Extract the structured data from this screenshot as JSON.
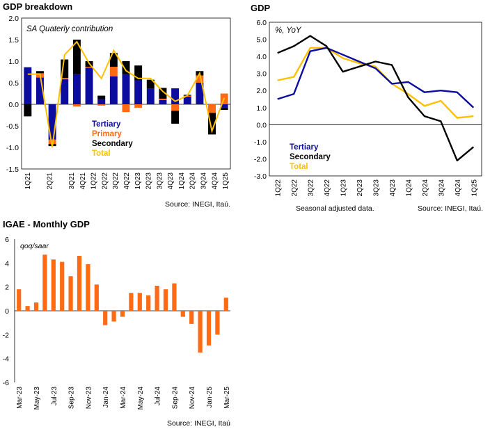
{
  "chart_data": [
    {
      "type": "bar",
      "stacked": true,
      "title": "GDP breakdown",
      "subtitle": "SA Quaterly contribution",
      "source": "Source: INEGI, Itaú.",
      "ylim": [
        -1.5,
        2.0
      ],
      "yticks": [
        "2.0",
        "1.5",
        "1.0",
        "0.5",
        "0.0",
        "-0.5",
        "-1.0",
        "-1.5"
      ],
      "categories": [
        "1Q21",
        "2Q21",
        "3Q21",
        "4Q21",
        "1Q22",
        "2Q22",
        "3Q22",
        "4Q22",
        "1Q23",
        "2Q23",
        "3Q23",
        "4Q23",
        "1Q24",
        "2Q24",
        "3Q24",
        "4Q24",
        "1Q25"
      ],
      "xlabels": [
        "1Q21",
        "",
        "2Q21",
        "",
        "3Q21",
        "4Q21",
        "1Q22",
        "2Q22",
        "3Q22",
        "4Q22",
        "1Q23",
        "2Q23",
        "3Q23",
        "4Q23",
        "1Q24",
        "2Q24",
        "3Q24",
        "4Q24",
        "1Q25"
      ],
      "series": [
        {
          "name": "Tertiary",
          "color": "#0c0c9e",
          "values": [
            0.86,
            0.62,
            -0.82,
            0.58,
            0.7,
            0.85,
            0.12,
            0.65,
            0.7,
            0.55,
            0.37,
            0.1,
            0.37,
            0.18,
            0.5,
            0.0,
            -0.08
          ]
        },
        {
          "name": "Primary",
          "color": "#ff6a13",
          "values": [
            0.0,
            0.1,
            -0.1,
            0.03,
            -0.05,
            0.02,
            -0.03,
            0.22,
            -0.18,
            -0.08,
            0.0,
            0.03,
            -0.15,
            0.02,
            0.17,
            -0.2,
            0.25
          ]
        },
        {
          "name": "Secondary",
          "color": "#000000",
          "values": [
            -0.28,
            0.05,
            -0.05,
            0.43,
            0.8,
            0.13,
            0.08,
            0.32,
            0.3,
            0.35,
            0.2,
            0.25,
            -0.3,
            0.02,
            0.1,
            -0.5,
            -0.05
          ]
        },
        {
          "name": "Total",
          "color": "#ffc000",
          "values": [
            0.7,
            0.7,
            -1.0,
            1.15,
            1.45,
            0.95,
            0.6,
            1.25,
            0.78,
            0.6,
            0.6,
            0.3,
            0.07,
            0.2,
            0.72,
            -0.62,
            0.15
          ]
        }
      ]
    },
    {
      "type": "line",
      "title": "GDP",
      "subtitle": "%, YoY",
      "note": "Seasonal adjusted data.",
      "source": "Source: INEGI, Itaú.",
      "ylim": [
        -3.0,
        6.0
      ],
      "yticks": [
        "6.0",
        "5.0",
        "4.0",
        "3.0",
        "2.0",
        "1.0",
        "0.0",
        "-1.0",
        "-2.0",
        "-3.0"
      ],
      "categories": [
        "1Q22",
        "2Q22",
        "3Q22",
        "4Q22",
        "1Q23",
        "2Q23",
        "3Q23",
        "4Q23",
        "1Q24",
        "2Q24",
        "3Q24",
        "4Q24",
        "1Q25"
      ],
      "series": [
        {
          "name": "Tertiary",
          "color": "#0c0c9e",
          "values": [
            1.5,
            1.8,
            4.3,
            4.5,
            4.1,
            3.7,
            3.3,
            2.4,
            2.5,
            1.9,
            2.0,
            1.9,
            1.0
          ]
        },
        {
          "name": "Secondary",
          "color": "#000000",
          "values": [
            4.2,
            4.6,
            5.2,
            4.6,
            3.1,
            3.4,
            3.7,
            3.5,
            1.6,
            0.5,
            0.2,
            -2.1,
            -1.3
          ]
        },
        {
          "name": "Total",
          "color": "#ffc000",
          "values": [
            2.6,
            2.8,
            4.5,
            4.5,
            3.9,
            3.6,
            3.4,
            2.4,
            1.8,
            1.1,
            1.4,
            0.4,
            0.5
          ]
        }
      ]
    },
    {
      "type": "bar",
      "title": "IGAE - Monthly GDP",
      "subtitle": "qoq/saar",
      "source": "Source: INEGI, Itaú",
      "ylim": [
        -6,
        6
      ],
      "yticks": [
        "6",
        "4",
        "2",
        "0",
        "-2",
        "-4",
        "-6"
      ],
      "categories": [
        "Mar-23",
        "Apr-23",
        "May-23",
        "Jun-23",
        "Jul-23",
        "Aug-23",
        "Sep-23",
        "Oct-23",
        "Nov-23",
        "Dec-23",
        "Jan-24",
        "Feb-24",
        "Mar-24",
        "Apr-24",
        "May-24",
        "Jun-24",
        "Jul-24",
        "Aug-24",
        "Sep-24",
        "Oct-24",
        "Nov-24",
        "Dec-24",
        "Jan-25",
        "Feb-25",
        "Mar-25"
      ],
      "xlabels": [
        "Mar-23",
        "May-23",
        "Jul-23",
        "Sep-23",
        "Nov-23",
        "Jan-24",
        "Mar-24",
        "May-24",
        "Jul-24",
        "Sep-24",
        "Nov-24",
        "Jan-25",
        "Mar-25"
      ],
      "series": [
        {
          "name": "IGAE",
          "color": "#ff6a13",
          "values": [
            1.8,
            0.4,
            0.7,
            4.7,
            4.3,
            4.1,
            2.9,
            4.6,
            3.9,
            2.2,
            -1.2,
            -0.9,
            -0.5,
            1.5,
            1.5,
            1.3,
            2.1,
            1.8,
            2.3,
            -0.5,
            -1.1,
            -3.5,
            -2.9,
            -2.0,
            1.1
          ]
        }
      ]
    }
  ]
}
